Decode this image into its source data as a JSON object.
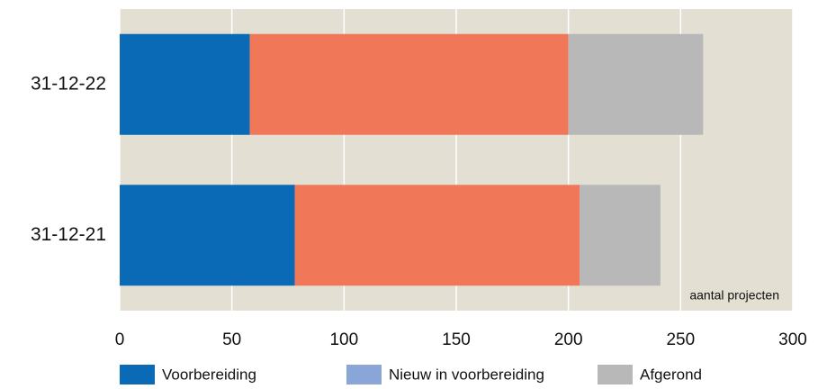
{
  "chart_data": {
    "type": "stacked-barh",
    "categories": [
      "31-12-22",
      "31-12-21"
    ],
    "series": [
      {
        "name": "Voorbereiding",
        "color": "#0a6ab5",
        "values": [
          58,
          78
        ]
      },
      {
        "name": "Nieuw in voorbereiding",
        "color": "#8aa6d6",
        "values": [
          0,
          0
        ]
      },
      {
        "color": "#f07858",
        "values": [
          142,
          127
        ]
      },
      {
        "name": "Afgerond",
        "color": "#b8b8b8",
        "values": [
          60,
          36
        ]
      }
    ],
    "xlabel": "aantal projecten",
    "xlim": [
      0,
      300
    ],
    "xticks": [
      0,
      50,
      100,
      150,
      200,
      250,
      300
    ],
    "grid": true,
    "background": "#e3dfd2"
  }
}
